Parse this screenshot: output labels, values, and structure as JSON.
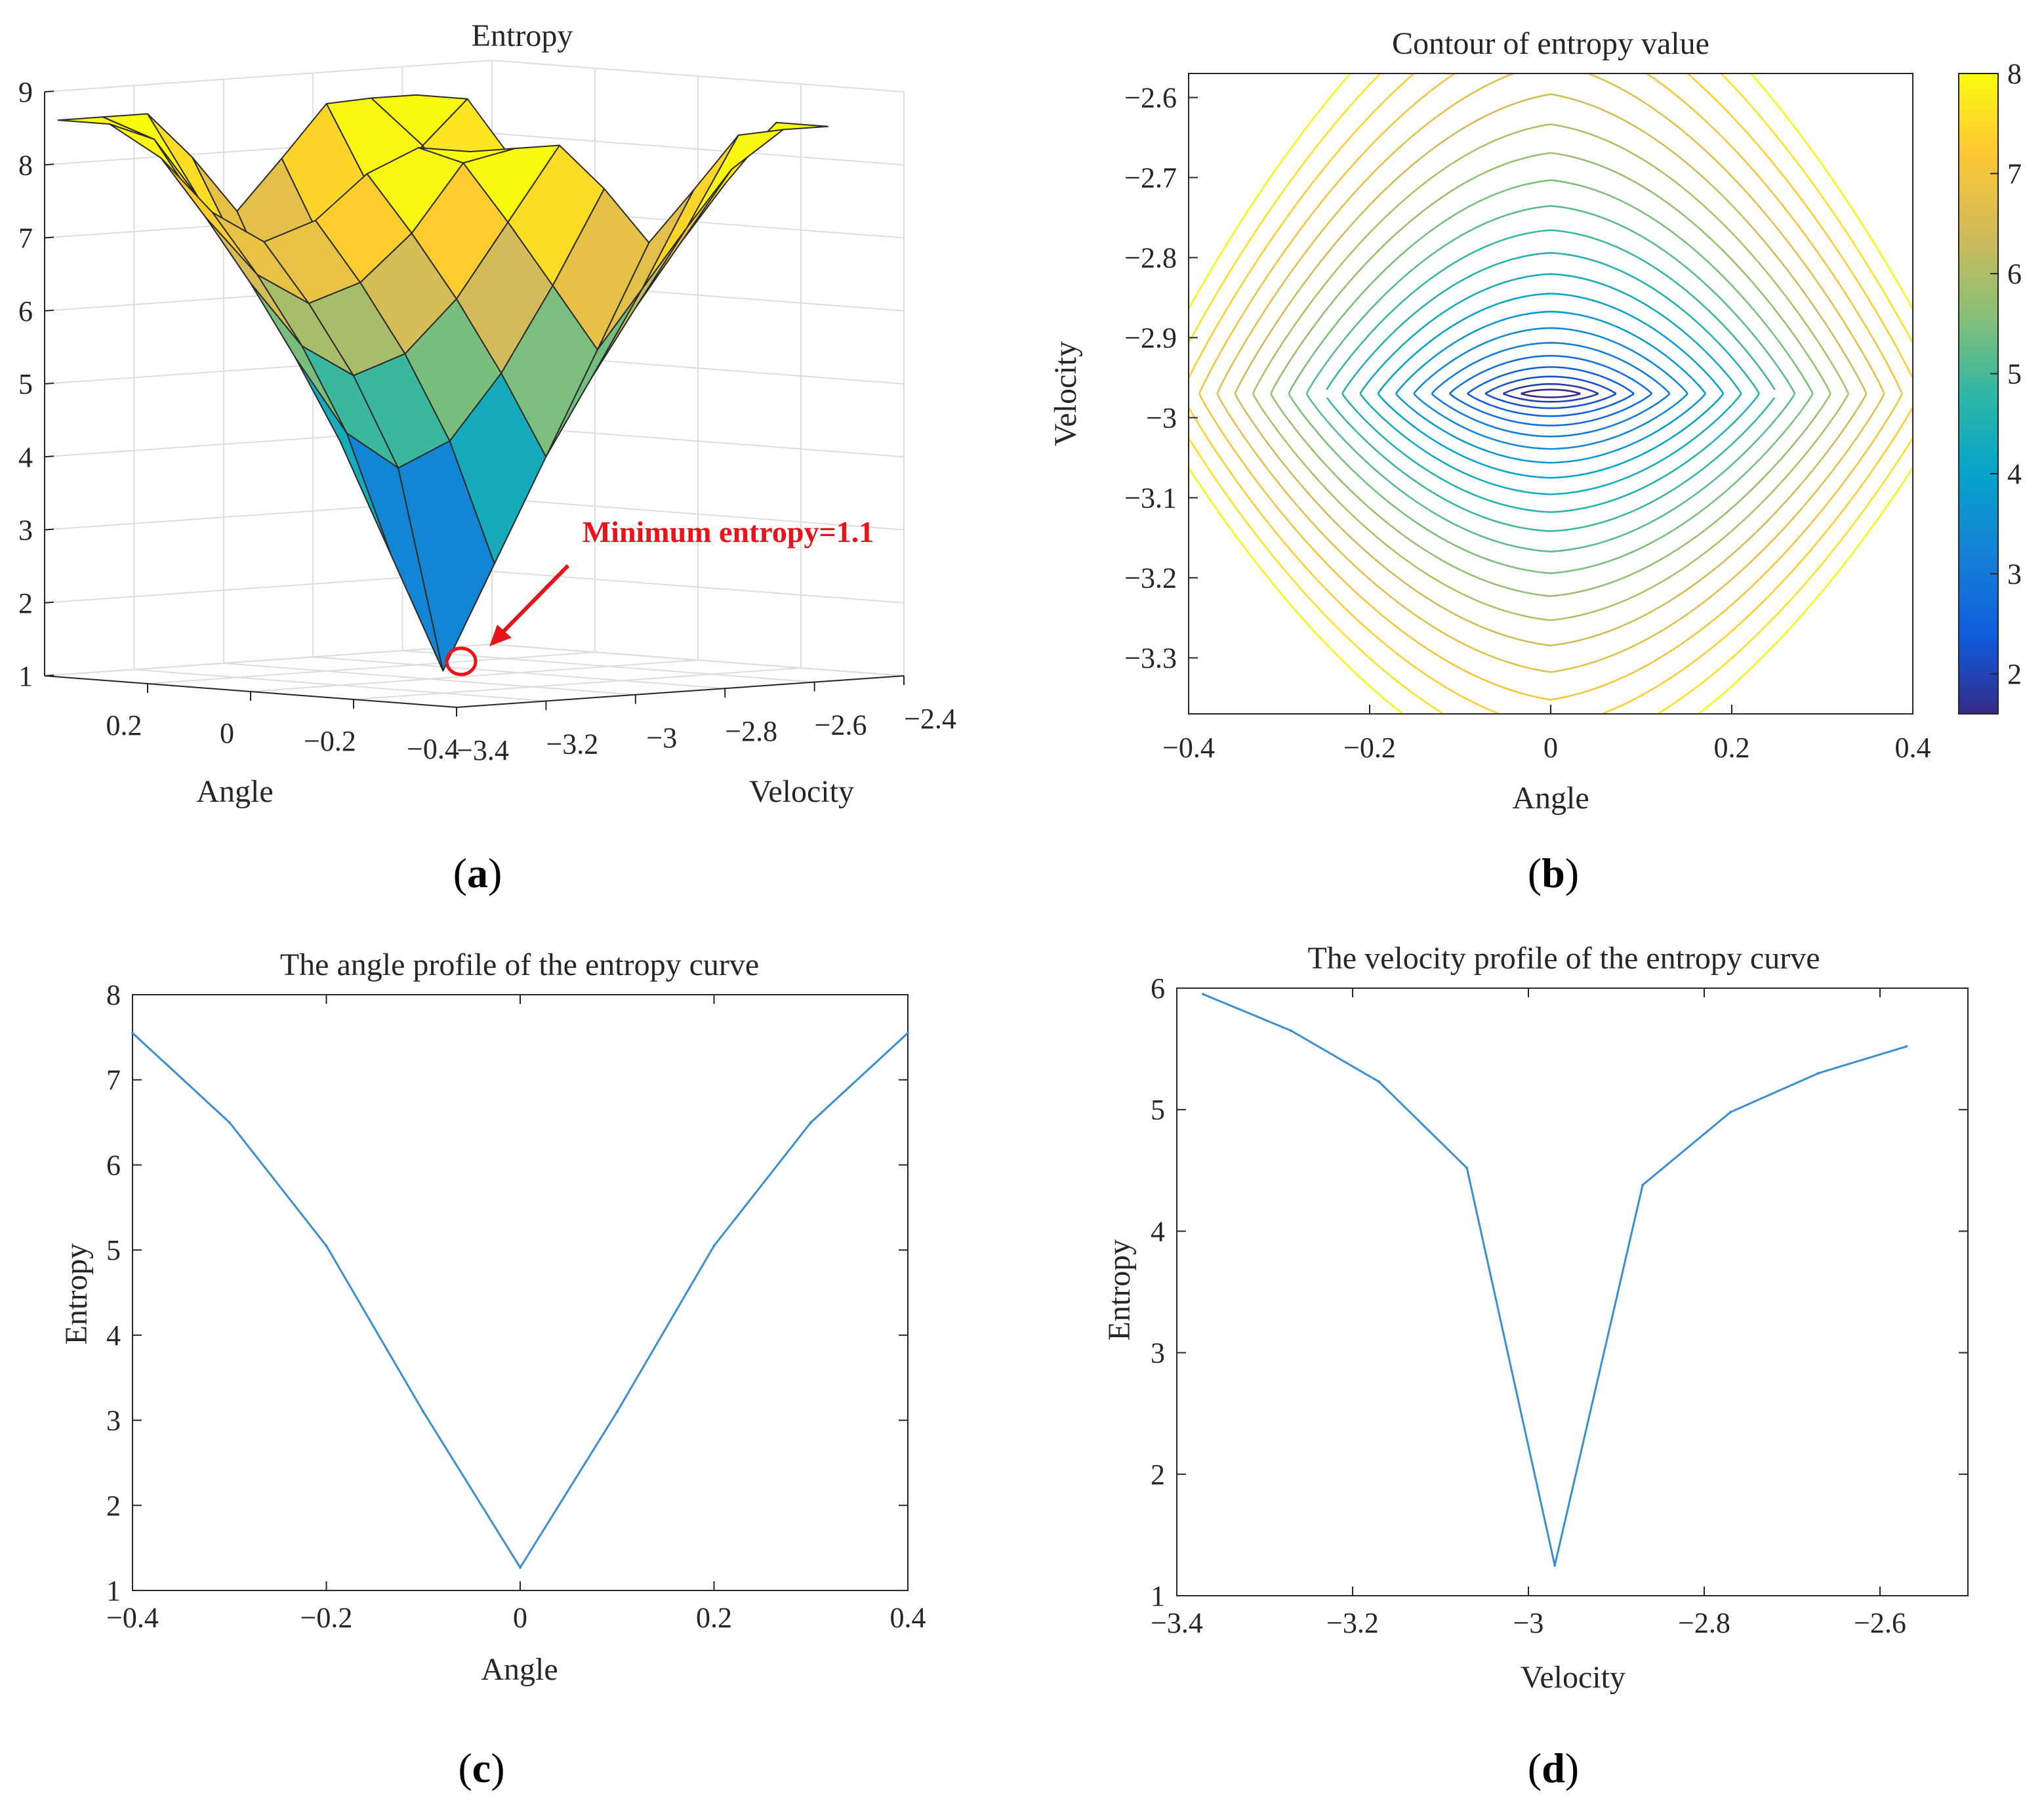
{
  "panel_labels": [
    "a",
    "b",
    "c",
    "d"
  ],
  "chart_data": [
    {
      "id": "a",
      "type": "surface",
      "title": "Entropy",
      "xlabel": "Angle",
      "ylabel": "Velocity",
      "zlim": [
        1,
        9
      ],
      "z_ticks": [
        "1",
        "2",
        "3",
        "4",
        "5",
        "6",
        "7",
        "8",
        "9"
      ],
      "x_ticks": [
        "0.2",
        "0",
        "−0.2",
        "−0.4"
      ],
      "y_ticks": [
        "−3.4",
        "−3.2",
        "−3",
        "−2.8",
        "−2.6",
        "−2.4"
      ],
      "x": [
        -0.4,
        -0.3,
        -0.2,
        -0.1,
        0,
        0.1,
        0.2,
        0.3,
        0.4
      ],
      "y": [
        -3.37,
        -3.27,
        -3.17,
        -3.07,
        -2.97,
        -2.87,
        -2.77,
        -2.67,
        -2.57
      ],
      "annotation": "Minimum entropy=1.1",
      "minimum": {
        "angle": 0,
        "velocity": -2.97,
        "entropy": 1.1
      }
    },
    {
      "id": "b",
      "type": "contour",
      "title": "Contour of entropy value",
      "xlabel": "Angle",
      "ylabel": "Velocity",
      "xlim": [
        -0.4,
        0.4
      ],
      "ylim": [
        -3.37,
        -2.57
      ],
      "x_ticks": [
        -0.4,
        -0.2,
        0,
        0.2,
        0.4
      ],
      "x_tick_labels": [
        "−0.4",
        "−0.2",
        "0",
        "0.2",
        "0.4"
      ],
      "y_ticks": [
        -2.6,
        -2.7,
        -2.8,
        -2.9,
        -3,
        -3.1,
        -3.2,
        -3.3
      ],
      "y_tick_labels": [
        "−2.6",
        "−2.7",
        "−2.8",
        "−2.9",
        "−3",
        "−3.1",
        "−3.2",
        "−3.3"
      ],
      "colorbar_range": [
        1.6,
        8
      ],
      "colorbar_ticks": [
        "2",
        "3",
        "4",
        "5",
        "6",
        "7",
        "8"
      ],
      "colorbar_tick_values": [
        2,
        3,
        4,
        5,
        6,
        7,
        8
      ],
      "levels": [
        1.6,
        1.9,
        2.2,
        2.5,
        2.8,
        3.1,
        3.4,
        3.7,
        4.0,
        4.3,
        4.6,
        4.9,
        5.2,
        5.5,
        5.8,
        6.1,
        6.4,
        6.7,
        7.0,
        7.3,
        7.6,
        7.9
      ],
      "center": {
        "angle": 0,
        "velocity": -2.97
      }
    },
    {
      "id": "c",
      "type": "line",
      "title": "The angle profile of the entropy curve",
      "xlabel": "Angle",
      "ylabel": "Entropy",
      "xlim": [
        -0.4,
        0.4
      ],
      "ylim": [
        1,
        8
      ],
      "x_ticks": [
        -0.4,
        -0.2,
        0,
        0.2,
        0.4
      ],
      "x_tick_labels": [
        "−0.4",
        "−0.2",
        "0",
        "0.2",
        "0.4"
      ],
      "y_ticks": [
        1,
        2,
        3,
        4,
        5,
        6,
        7,
        8
      ],
      "y_tick_labels": [
        "1",
        "2",
        "3",
        "4",
        "5",
        "6",
        "7",
        "8"
      ],
      "x": [
        -0.4,
        -0.3,
        -0.2,
        -0.1,
        0,
        0.1,
        0.2,
        0.3,
        0.4
      ],
      "values": [
        7.55,
        6.5,
        5.05,
        3.1,
        1.27,
        3.1,
        5.05,
        6.5,
        7.55
      ],
      "color": "#3a8fd1"
    },
    {
      "id": "d",
      "type": "line",
      "title": "The velocity profile of the entropy curve",
      "xlabel": "Velocity",
      "ylabel": "Entropy",
      "xlim": [
        -3.4,
        -2.5
      ],
      "ylim": [
        1,
        6
      ],
      "x_ticks": [
        -3.4,
        -3.2,
        -3,
        -2.8,
        -2.6
      ],
      "x_tick_labels": [
        "−3.4",
        "−3.2",
        "−3",
        "−2.8",
        "−2.6"
      ],
      "y_ticks": [
        1,
        2,
        3,
        4,
        5,
        6
      ],
      "y_tick_labels": [
        "1",
        "2",
        "3",
        "4",
        "5",
        "6"
      ],
      "x": [
        -3.37,
        -3.27,
        -3.17,
        -3.07,
        -2.97,
        -2.87,
        -2.77,
        -2.67,
        -2.57
      ],
      "values": [
        5.95,
        5.65,
        5.23,
        4.52,
        1.25,
        4.38,
        4.98,
        5.3,
        5.52
      ],
      "color": "#3a8fd1"
    }
  ]
}
